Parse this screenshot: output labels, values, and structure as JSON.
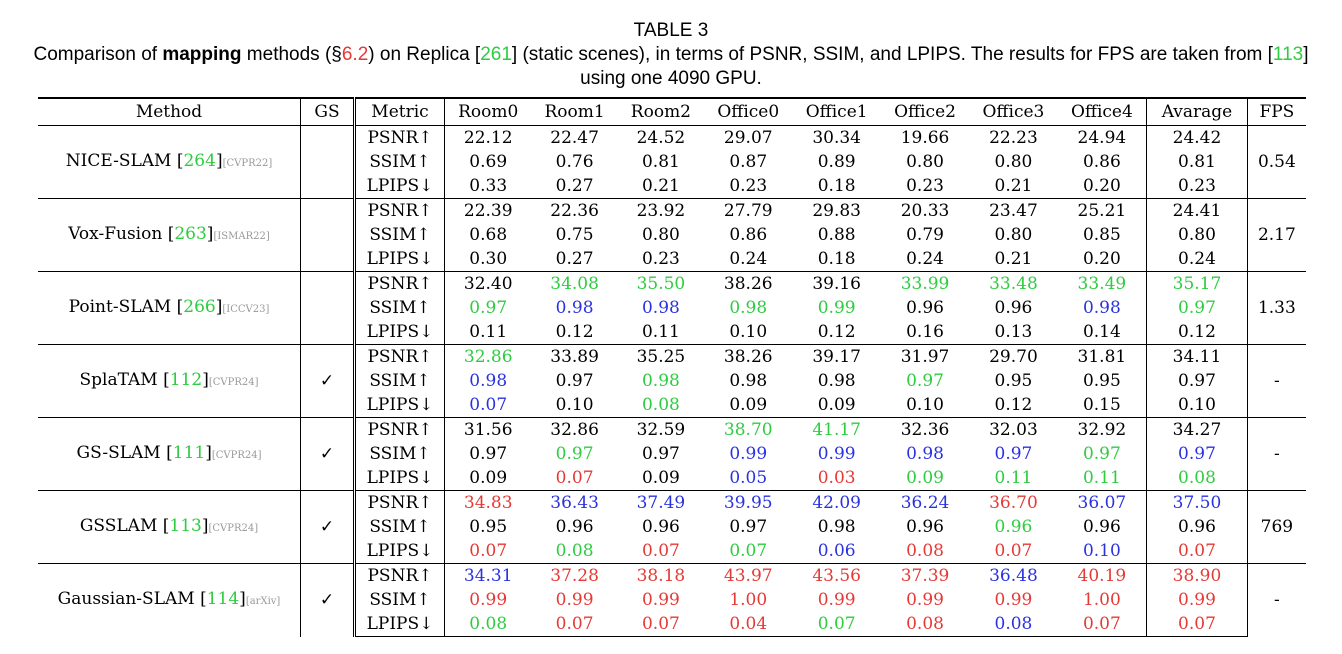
{
  "caption": {
    "label": "TABLE 3",
    "text_1": "Comparison of ",
    "bold": "mapping",
    "text_2": " methods (§",
    "section": "6.2",
    "text_3": ") on Replica [",
    "ref_replica": "261",
    "text_4": "] (static scenes), in terms of PSNR, SSIM, and LPIPS. The results for FPS are taken from [",
    "ref_fps": "113",
    "text_5": "] using one 4090 GPU."
  },
  "headers": [
    "Method",
    "GS",
    "Metric",
    "Room0",
    "Room1",
    "Room2",
    "Office0",
    "Office1",
    "Office2",
    "Office3",
    "Office4",
    "Avarage",
    "FPS"
  ],
  "colors": {
    "red": "#e53935",
    "blue": "#2a32e0",
    "green": "#2ecc40",
    "black": "#000000"
  },
  "groups": [
    {
      "name": "NICE-SLAM",
      "ref": "264",
      "venue": "[CVPR22]",
      "gs": "",
      "fps": "0.54",
      "rows": [
        {
          "metric": "PSNR↑",
          "values": [
            "22.12",
            "22.47",
            "24.52",
            "29.07",
            "30.34",
            "19.66",
            "22.23",
            "24.94",
            "24.42"
          ],
          "colors": [
            "k",
            "k",
            "k",
            "k",
            "k",
            "k",
            "k",
            "k",
            "k"
          ]
        },
        {
          "metric": "SSIM↑",
          "values": [
            "0.69",
            "0.76",
            "0.81",
            "0.87",
            "0.89",
            "0.80",
            "0.80",
            "0.86",
            "0.81"
          ],
          "colors": [
            "k",
            "k",
            "k",
            "k",
            "k",
            "k",
            "k",
            "k",
            "k"
          ]
        },
        {
          "metric": "LPIPS↓",
          "values": [
            "0.33",
            "0.27",
            "0.21",
            "0.23",
            "0.18",
            "0.23",
            "0.21",
            "0.20",
            "0.23"
          ],
          "colors": [
            "k",
            "k",
            "k",
            "k",
            "k",
            "k",
            "k",
            "k",
            "k"
          ]
        }
      ]
    },
    {
      "name": "Vox-Fusion",
      "ref": "263",
      "venue": "[ISMAR22]",
      "gs": "",
      "fps": "2.17",
      "rows": [
        {
          "metric": "PSNR↑",
          "values": [
            "22.39",
            "22.36",
            "23.92",
            "27.79",
            "29.83",
            "20.33",
            "23.47",
            "25.21",
            "24.41"
          ],
          "colors": [
            "k",
            "k",
            "k",
            "k",
            "k",
            "k",
            "k",
            "k",
            "k"
          ]
        },
        {
          "metric": "SSIM↑",
          "values": [
            "0.68",
            "0.75",
            "0.80",
            "0.86",
            "0.88",
            "0.79",
            "0.80",
            "0.85",
            "0.80"
          ],
          "colors": [
            "k",
            "k",
            "k",
            "k",
            "k",
            "k",
            "k",
            "k",
            "k"
          ]
        },
        {
          "metric": "LPIPS↓",
          "values": [
            "0.30",
            "0.27",
            "0.23",
            "0.24",
            "0.18",
            "0.24",
            "0.21",
            "0.20",
            "0.24"
          ],
          "colors": [
            "k",
            "k",
            "k",
            "k",
            "k",
            "k",
            "k",
            "k",
            "k"
          ]
        }
      ]
    },
    {
      "name": "Point-SLAM",
      "ref": "266",
      "venue": "[ICCV23]",
      "gs": "",
      "fps": "1.33",
      "rows": [
        {
          "metric": "PSNR↑",
          "values": [
            "32.40",
            "34.08",
            "35.50",
            "38.26",
            "39.16",
            "33.99",
            "33.48",
            "33.49",
            "35.17"
          ],
          "colors": [
            "k",
            "g",
            "g",
            "k",
            "k",
            "g",
            "g",
            "g",
            "g"
          ]
        },
        {
          "metric": "SSIM↑",
          "values": [
            "0.97",
            "0.98",
            "0.98",
            "0.98",
            "0.99",
            "0.96",
            "0.96",
            "0.98",
            "0.97"
          ],
          "colors": [
            "g",
            "b",
            "b",
            "g",
            "g",
            "k",
            "k",
            "b",
            "g"
          ]
        },
        {
          "metric": "LPIPS↓",
          "values": [
            "0.11",
            "0.12",
            "0.11",
            "0.10",
            "0.12",
            "0.16",
            "0.13",
            "0.14",
            "0.12"
          ],
          "colors": [
            "k",
            "k",
            "k",
            "k",
            "k",
            "k",
            "k",
            "k",
            "k"
          ]
        }
      ]
    },
    {
      "name": "SplaTAM",
      "ref": "112",
      "venue": "[CVPR24]",
      "gs": "✓",
      "fps": "-",
      "rows": [
        {
          "metric": "PSNR↑",
          "values": [
            "32.86",
            "33.89",
            "35.25",
            "38.26",
            "39.17",
            "31.97",
            "29.70",
            "31.81",
            "34.11"
          ],
          "colors": [
            "g",
            "k",
            "k",
            "k",
            "k",
            "k",
            "k",
            "k",
            "k"
          ]
        },
        {
          "metric": "SSIM↑",
          "values": [
            "0.98",
            "0.97",
            "0.98",
            "0.98",
            "0.98",
            "0.97",
            "0.95",
            "0.95",
            "0.97"
          ],
          "colors": [
            "b",
            "k",
            "g",
            "k",
            "k",
            "g",
            "k",
            "k",
            "k"
          ]
        },
        {
          "metric": "LPIPS↓",
          "values": [
            "0.07",
            "0.10",
            "0.08",
            "0.09",
            "0.09",
            "0.10",
            "0.12",
            "0.15",
            "0.10"
          ],
          "colors": [
            "b",
            "k",
            "g",
            "k",
            "k",
            "k",
            "k",
            "k",
            "k"
          ]
        }
      ]
    },
    {
      "name": "GS-SLAM",
      "ref": "111",
      "venue": "[CVPR24]",
      "gs": "✓",
      "fps": "-",
      "rows": [
        {
          "metric": "PSNR↑",
          "values": [
            "31.56",
            "32.86",
            "32.59",
            "38.70",
            "41.17",
            "32.36",
            "32.03",
            "32.92",
            "34.27"
          ],
          "colors": [
            "k",
            "k",
            "k",
            "g",
            "g",
            "k",
            "k",
            "k",
            "k"
          ]
        },
        {
          "metric": "SSIM↑",
          "values": [
            "0.97",
            "0.97",
            "0.97",
            "0.99",
            "0.99",
            "0.98",
            "0.97",
            "0.97",
            "0.97"
          ],
          "colors": [
            "k",
            "g",
            "k",
            "b",
            "b",
            "b",
            "b",
            "g",
            "b"
          ]
        },
        {
          "metric": "LPIPS↓",
          "values": [
            "0.09",
            "0.07",
            "0.09",
            "0.05",
            "0.03",
            "0.09",
            "0.11",
            "0.11",
            "0.08"
          ],
          "colors": [
            "k",
            "r",
            "k",
            "b",
            "r",
            "g",
            "g",
            "g",
            "g"
          ]
        }
      ]
    },
    {
      "name": "GSSLAM",
      "ref": "113",
      "venue": "[CVPR24]",
      "gs": "✓",
      "fps": "769",
      "rows": [
        {
          "metric": "PSNR↑",
          "values": [
            "34.83",
            "36.43",
            "37.49",
            "39.95",
            "42.09",
            "36.24",
            "36.70",
            "36.07",
            "37.50"
          ],
          "colors": [
            "r",
            "b",
            "b",
            "b",
            "b",
            "b",
            "r",
            "b",
            "b"
          ]
        },
        {
          "metric": "SSIM↑",
          "values": [
            "0.95",
            "0.96",
            "0.96",
            "0.97",
            "0.98",
            "0.96",
            "0.96",
            "0.96",
            "0.96"
          ],
          "colors": [
            "k",
            "k",
            "k",
            "k",
            "k",
            "k",
            "g",
            "k",
            "k"
          ]
        },
        {
          "metric": "LPIPS↓",
          "values": [
            "0.07",
            "0.08",
            "0.07",
            "0.07",
            "0.06",
            "0.08",
            "0.07",
            "0.10",
            "0.07"
          ],
          "colors": [
            "r",
            "g",
            "r",
            "g",
            "b",
            "r",
            "r",
            "b",
            "r"
          ]
        }
      ]
    },
    {
      "name": "Gaussian-SLAM",
      "ref": "114",
      "venue": "[arXiv]",
      "gs": "✓",
      "fps": "-",
      "rows": [
        {
          "metric": "PSNR↑",
          "values": [
            "34.31",
            "37.28",
            "38.18",
            "43.97",
            "43.56",
            "37.39",
            "36.48",
            "40.19",
            "38.90"
          ],
          "colors": [
            "b",
            "r",
            "r",
            "r",
            "r",
            "r",
            "b",
            "r",
            "r"
          ]
        },
        {
          "metric": "SSIM↑",
          "values": [
            "0.99",
            "0.99",
            "0.99",
            "1.00",
            "0.99",
            "0.99",
            "0.99",
            "1.00",
            "0.99"
          ],
          "colors": [
            "r",
            "r",
            "r",
            "r",
            "r",
            "r",
            "r",
            "r",
            "r"
          ]
        },
        {
          "metric": "LPIPS↓",
          "values": [
            "0.08",
            "0.07",
            "0.07",
            "0.04",
            "0.07",
            "0.08",
            "0.08",
            "0.07",
            "0.07"
          ],
          "colors": [
            "g",
            "r",
            "r",
            "r",
            "g",
            "r",
            "b",
            "r",
            "r"
          ]
        }
      ]
    }
  ]
}
